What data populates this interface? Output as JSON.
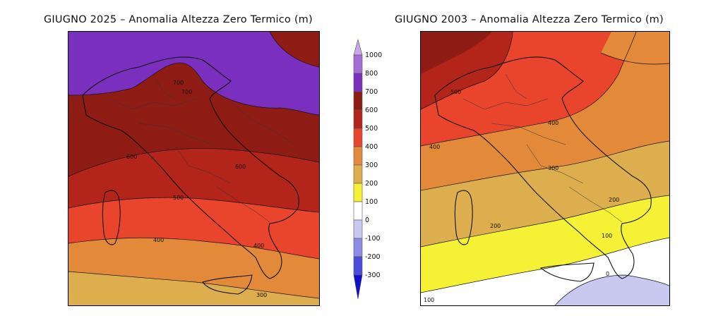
{
  "titles": {
    "left": "GIUGNO 2025 – Anomalia Altezza Zero Termico (m)",
    "right": "GIUGNO 2003 – Anomalia Altezza Zero Termico (m)"
  },
  "colorbar": {
    "labels": [
      "1000",
      "800",
      "700",
      "600",
      "500",
      "400",
      "300",
      "200",
      "100",
      "0",
      "-100",
      "-200",
      "-300"
    ],
    "colors": [
      "#c9a6e8",
      "#a36cd6",
      "#7b2fbf",
      "#8e1b14",
      "#b3241a",
      "#e8452c",
      "#e38a3a",
      "#dcae4d",
      "#f5f235",
      "#ffffff",
      "#c8c8f0",
      "#8c8ce6",
      "#4c4cde",
      "#1010cc"
    ]
  },
  "left_map": {
    "contour_labels": [
      "700",
      "700",
      "600",
      "600",
      "500",
      "400",
      "400",
      "300"
    ]
  },
  "right_map": {
    "contour_labels": [
      "500",
      "400",
      "400",
      "300",
      "200",
      "200",
      "100",
      "0",
      "100"
    ]
  }
}
